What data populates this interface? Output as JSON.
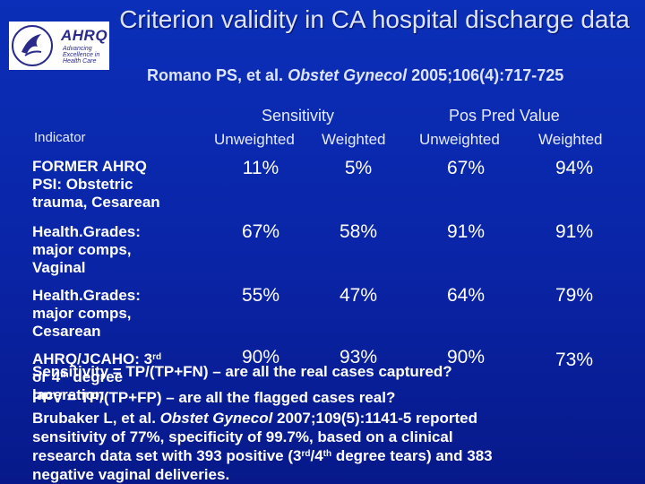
{
  "logo": {
    "text": "AHRQ",
    "tagline": [
      "Advancing",
      "Excellence in",
      "Health Care"
    ]
  },
  "title": "Criterion validity in CA hospital discharge data",
  "subtitle": {
    "authors": "Romano PS, et al.",
    "journal": "Obstet Gynecol",
    "citation": "2005;106(4):717-725"
  },
  "table": {
    "indicator_header": "Indicator",
    "group_headers": [
      "Sensitivity",
      "Pos Pred Value"
    ],
    "column_headers": [
      "Unweighted",
      "Weighted",
      "Unweighted",
      "Weighted"
    ],
    "rows": [
      {
        "label_lines": [
          "FORMER AHRQ",
          "PSI: Obstetric",
          "trauma, Cesarean"
        ],
        "values": [
          "11%",
          "5%",
          "67%",
          "94%"
        ]
      },
      {
        "label_lines": [
          "Health.Grades:",
          "major comps,",
          "Vaginal"
        ],
        "values": [
          "67%",
          "58%",
          "91%",
          "91%"
        ]
      },
      {
        "label_lines": [
          "Health.Grades:",
          "major comps,",
          "Cesarean"
        ],
        "values": [
          "55%",
          "47%",
          "64%",
          "79%"
        ]
      },
      {
        "label_lines": [
          "AHRQ/JCAHO: 3",
          "rd",
          "or 4",
          "th",
          " degree",
          "laceration"
        ],
        "values": [
          "90%",
          "93%",
          "90%",
          "73%"
        ]
      }
    ]
  },
  "notes": {
    "sensitivity": "Sensitivity = TP/(TP+FN) – are all the real cases captured?",
    "ppv": "PPV = TP/(TP+FP) – are all the flagged cases real?",
    "brubaker": {
      "prefix": "Brubaker L, et al.",
      "journal": "Obstet Gynecol",
      "rest1": "2007;109(5):1141-5 reported",
      "line2": "sensitivity of 77%, specificity of 99.7%, based on a clinical",
      "line3_a": "research data set with 393 positive (3",
      "sup_rd": "rd",
      "line3_b": "/4",
      "sup_th": "th",
      "line3_c": " degree tears) and 383",
      "line4": "negative vaginal deliveries."
    }
  }
}
